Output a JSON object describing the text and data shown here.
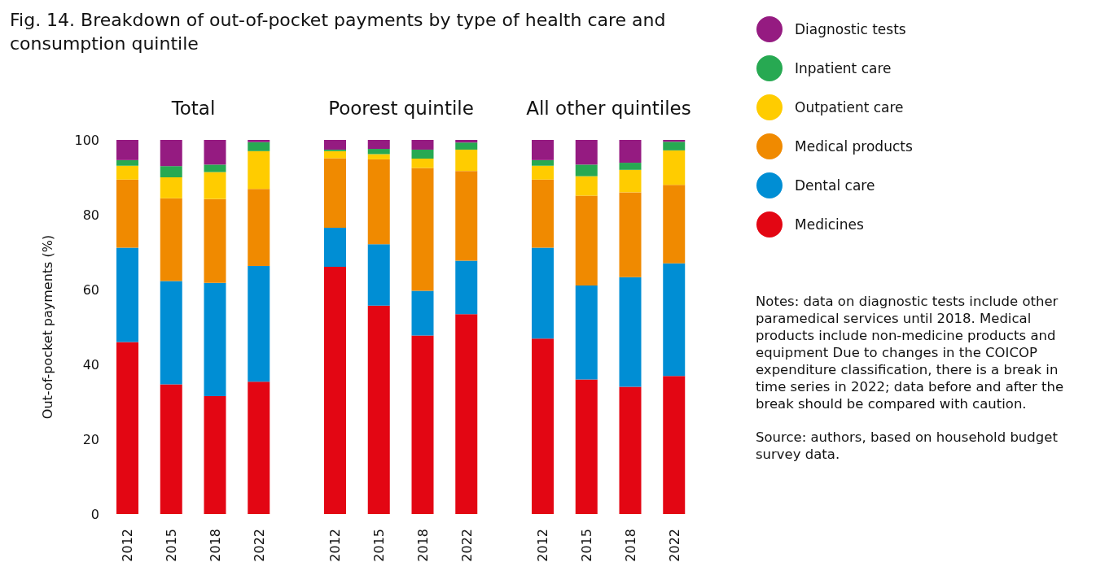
{
  "chart_data": [
    {
      "type": "bar",
      "stacked": true,
      "title": "Fig. 14. Breakdown of out-of-pocket payments by type of health care and consumption quintile",
      "subtitle": "Total",
      "ylabel": "Out-of-pocket payments (%)",
      "categories": [
        "2012",
        "2015",
        "2018",
        "2022"
      ],
      "ylim": [
        0,
        100
      ],
      "yticks": [
        0,
        20,
        40,
        60,
        80,
        100
      ],
      "legend": "right",
      "series": [
        {
          "name": "Medicines",
          "color": "#e30613",
          "values": [
            46.0,
            34.7,
            31.5,
            35.4
          ]
        },
        {
          "name": "Dental care",
          "color": "#008ed4",
          "values": [
            25.2,
            27.6,
            30.3,
            30.9
          ]
        },
        {
          "name": "Medical products",
          "color": "#f08a00",
          "values": [
            18.2,
            22.1,
            22.4,
            20.6
          ]
        },
        {
          "name": "Outpatient care",
          "color": "#ffcc00",
          "values": [
            3.7,
            5.6,
            7.2,
            10.1
          ]
        },
        {
          "name": "Inpatient care",
          "color": "#27a952",
          "values": [
            1.5,
            3.0,
            2.0,
            2.4
          ]
        },
        {
          "name": "Diagnostic tests",
          "color": "#951b81",
          "values": [
            5.4,
            7.0,
            6.6,
            0.6
          ]
        }
      ]
    },
    {
      "type": "bar",
      "stacked": true,
      "subtitle": "Poorest quintile",
      "categories": [
        "2012",
        "2015",
        "2018",
        "2022"
      ],
      "ylim": [
        0,
        100
      ],
      "tick_labels": "x",
      "series": [
        {
          "color": "#e30613",
          "values": [
            66.1,
            55.7,
            47.7,
            53.4
          ]
        },
        {
          "color": "#008ed4",
          "values": [
            10.4,
            16.4,
            12.0,
            14.3
          ]
        },
        {
          "color": "#f08a00",
          "values": [
            18.6,
            22.7,
            32.8,
            24.0
          ]
        },
        {
          "color": "#ffcc00",
          "values": [
            1.9,
            1.4,
            2.5,
            5.7
          ]
        },
        {
          "color": "#27a952",
          "values": [
            0.4,
            1.4,
            2.4,
            1.9
          ]
        },
        {
          "color": "#951b81",
          "values": [
            2.6,
            2.4,
            2.6,
            0.7
          ]
        }
      ]
    },
    {
      "type": "bar",
      "stacked": true,
      "subtitle": "All other quintiles",
      "categories": [
        "2012",
        "2015",
        "2018",
        "2022"
      ],
      "ylim": [
        0,
        100
      ],
      "tick_labels": "x",
      "annotations": [
        "Notes: data on diagnostic tests include other paramedical services until 2018. Medical products include non-medicine products and equipment Due to changes in the COICOP expenditure classification, there is a break in time series in 2022; data before and after the break should be compared with caution.",
        "Source: authors, based on household budget survey data."
      ],
      "series": [
        {
          "color": "#e30613",
          "values": [
            46.9,
            36.0,
            34.0,
            36.9
          ]
        },
        {
          "color": "#008ed4",
          "values": [
            24.3,
            25.1,
            29.3,
            30.1
          ]
        },
        {
          "color": "#f08a00",
          "values": [
            18.2,
            24.0,
            22.7,
            21.0
          ]
        },
        {
          "color": "#ffcc00",
          "values": [
            3.7,
            5.2,
            6.0,
            9.2
          ]
        },
        {
          "color": "#27a952",
          "values": [
            1.5,
            3.1,
            1.9,
            2.3
          ]
        },
        {
          "color": "#951b81",
          "values": [
            5.4,
            6.6,
            6.1,
            0.5
          ]
        }
      ]
    }
  ]
}
